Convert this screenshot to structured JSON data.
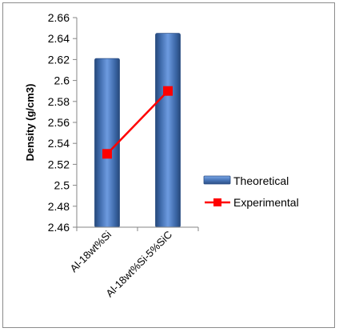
{
  "chart_data": {
    "type": "bar",
    "categories": [
      "Al-18wt%Si",
      "Al-18wt%Si-5%SiC"
    ],
    "series": [
      {
        "name": "Theoretical",
        "kind": "bar",
        "values": [
          2.621,
          2.645
        ],
        "color": "#4f81bd"
      },
      {
        "name": "Experimental",
        "kind": "line",
        "values": [
          2.53,
          2.59
        ],
        "color": "#ff0000"
      }
    ],
    "ylabel": "Density (g/cm3)",
    "ylim": [
      2.46,
      2.66
    ],
    "yticks": [
      "2.46",
      "2.48",
      "2.5",
      "2.52",
      "2.54",
      "2.56",
      "2.58",
      "2.6",
      "2.62",
      "2.64",
      "2.66"
    ],
    "grid": false,
    "legend": "right"
  }
}
